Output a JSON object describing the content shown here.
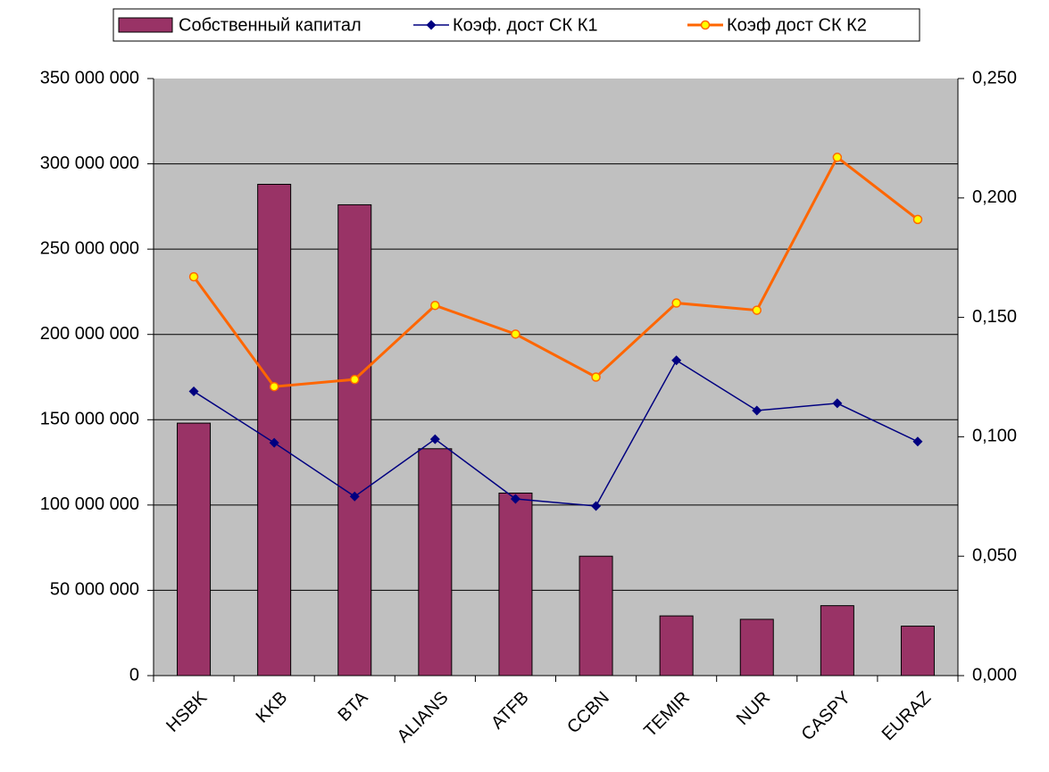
{
  "chart_data": {
    "type": "bar_line",
    "categories": [
      "HSBK",
      "KKB",
      "BTA",
      "ALIANS",
      "ATFB",
      "CCBN",
      "TEMIR",
      "NUR",
      "CASPY",
      "EURAZ"
    ],
    "series": [
      {
        "name": "Собственный капитал",
        "type": "bar",
        "color": "#993366",
        "values": [
          148000000,
          288000000,
          276000000,
          133000000,
          107000000,
          70000000,
          35000000,
          33000000,
          41000000,
          29000000
        ]
      },
      {
        "name": "Коэф. дост СК К1",
        "type": "line",
        "axis": "y2",
        "color": "#000080",
        "marker": "diamond",
        "values": [
          0.119,
          0.0975,
          0.075,
          0.099,
          0.074,
          0.071,
          0.132,
          0.111,
          0.114,
          0.098
        ]
      },
      {
        "name": "Коэф дост СК К2",
        "type": "line",
        "axis": "y2",
        "color": "#ff6600",
        "marker": "circle",
        "values": [
          0.167,
          0.121,
          0.124,
          0.155,
          0.143,
          0.125,
          0.156,
          0.153,
          0.217,
          0.191
        ]
      }
    ],
    "ylim": [
      0,
      350000000
    ],
    "yticks": [
      0,
      {
        "value": 50000000,
        "label": "50 000 000"
      },
      {
        "value": 100000000,
        "label": "100 000 000"
      },
      {
        "value": 150000000,
        "label": "150 000 000"
      },
      {
        "value": 200000000,
        "label": "200 000 000"
      },
      {
        "value": 250000000,
        "label": "250 000 000"
      },
      {
        "value": 300000000,
        "label": "300 000 000"
      },
      {
        "value": 350000000,
        "label": "350 000 000"
      }
    ],
    "y2lim": [
      0,
      0.25
    ],
    "y2ticks": [
      {
        "value": 0,
        "label": "0,000"
      },
      {
        "value": 0.05,
        "label": "0,050"
      },
      {
        "value": 0.1,
        "label": "0,100"
      },
      {
        "value": 0.15,
        "label": "0,150"
      },
      {
        "value": 0.2,
        "label": "0,200"
      },
      {
        "value": 0.25,
        "label": "0,250"
      }
    ],
    "grid": true,
    "legend": "top"
  }
}
